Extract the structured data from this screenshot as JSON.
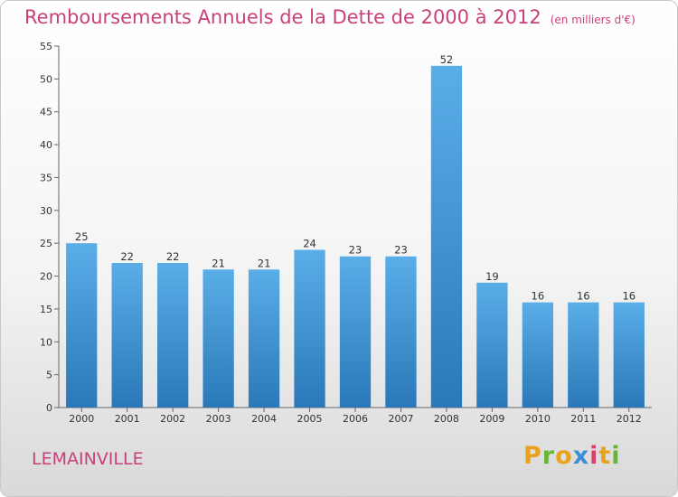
{
  "header": {
    "title": "Remboursements Annuels de la Dette de 2000 à 2012",
    "unit": "(en milliers d'€)"
  },
  "commune": "LEMAINVILLE",
  "logo": {
    "text": "Proxiti",
    "letter_colors": [
      "#e8a21c",
      "#6bb43a",
      "#e8a21c",
      "#3a8fd6",
      "#d8436e",
      "#e8a21c",
      "#6bb43a"
    ]
  },
  "colors": {
    "bar_top": "#5aaee8",
    "bar_bottom": "#2a78b8",
    "title": "#c8417a"
  },
  "chart_data": {
    "type": "bar",
    "title": "Remboursements Annuels de la Dette de 2000 à 2012",
    "categories": [
      "2000",
      "2001",
      "2002",
      "2003",
      "2004",
      "2005",
      "2006",
      "2007",
      "2008",
      "2009",
      "2010",
      "2011",
      "2012"
    ],
    "values": [
      25,
      22,
      22,
      21,
      21,
      24,
      23,
      23,
      52,
      19,
      16,
      16,
      16
    ],
    "ylim": [
      0,
      55
    ],
    "yticks": [
      0,
      5,
      10,
      15,
      20,
      25,
      30,
      35,
      40,
      45,
      50,
      55
    ],
    "grid": false,
    "legend": false
  }
}
